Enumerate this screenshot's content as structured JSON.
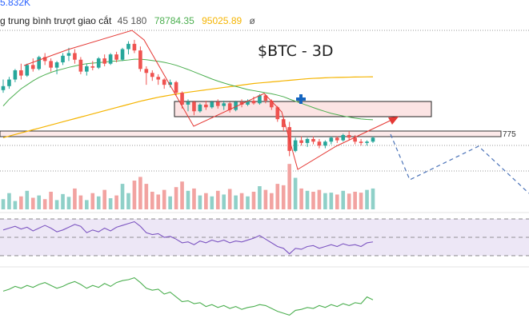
{
  "chart_data": {
    "type": "candlestick",
    "title": "$BTC -  3D",
    "top_left_value": "5.832K",
    "legend": {
      "label": "g trung bình trượt giao cắt",
      "period": "45 180",
      "ma_fast_value": "78784.35",
      "ma_slow_value": "95025.89",
      "null_symbol": "ø"
    },
    "price_label": "775",
    "colors": {
      "up": "#26a69a",
      "down": "#ef5350",
      "ma_fast": "#4caf50",
      "ma_slow": "#f5b400",
      "rsi": "#7e57c2",
      "rsi_band": "#ede7f6",
      "macd": "#4caf50",
      "trend": "#e53935",
      "projection": "#4a72b8",
      "cross_marker": "#1565c0"
    },
    "ylim": [
      60000,
      112000
    ],
    "volume_max": 100,
    "rsi_levels": [
      70,
      50,
      30
    ],
    "rsi_ylim": [
      20,
      80
    ],
    "candles": [
      {
        "o": 90000,
        "h": 94000,
        "l": 89000,
        "c": 91500
      },
      {
        "o": 91500,
        "h": 95000,
        "l": 90500,
        "c": 94000
      },
      {
        "o": 94000,
        "h": 98000,
        "l": 93000,
        "c": 97500
      },
      {
        "o": 97500,
        "h": 100000,
        "l": 94000,
        "c": 95500
      },
      {
        "o": 95500,
        "h": 100000,
        "l": 95000,
        "c": 99500
      },
      {
        "o": 99500,
        "h": 102000,
        "l": 97000,
        "c": 98000
      },
      {
        "o": 98000,
        "h": 103000,
        "l": 97500,
        "c": 102500
      },
      {
        "o": 102500,
        "h": 104000,
        "l": 99500,
        "c": 101000
      },
      {
        "o": 101000,
        "h": 102000,
        "l": 97000,
        "c": 98500
      },
      {
        "o": 98500,
        "h": 101000,
        "l": 96000,
        "c": 100500
      },
      {
        "o": 100500,
        "h": 104000,
        "l": 99500,
        "c": 103000
      },
      {
        "o": 103000,
        "h": 106000,
        "l": 101000,
        "c": 104000
      },
      {
        "o": 104000,
        "h": 105500,
        "l": 100000,
        "c": 101500
      },
      {
        "o": 101500,
        "h": 102500,
        "l": 96000,
        "c": 97000
      },
      {
        "o": 97000,
        "h": 100000,
        "l": 95500,
        "c": 99000
      },
      {
        "o": 99000,
        "h": 101000,
        "l": 97500,
        "c": 98500
      },
      {
        "o": 98500,
        "h": 102500,
        "l": 98000,
        "c": 102000
      },
      {
        "o": 102000,
        "h": 103500,
        "l": 99000,
        "c": 100000
      },
      {
        "o": 100000,
        "h": 104000,
        "l": 99500,
        "c": 103500
      },
      {
        "o": 103500,
        "h": 104500,
        "l": 100500,
        "c": 101500
      },
      {
        "o": 101500,
        "h": 106000,
        "l": 101000,
        "c": 105500
      },
      {
        "o": 105500,
        "h": 108500,
        "l": 103500,
        "c": 107500
      },
      {
        "o": 107500,
        "h": 109000,
        "l": 104000,
        "c": 105000
      },
      {
        "o": 105000,
        "h": 106500,
        "l": 97000,
        "c": 98000
      },
      {
        "o": 98000,
        "h": 99000,
        "l": 92000,
        "c": 96500
      },
      {
        "o": 96500,
        "h": 97500,
        "l": 93500,
        "c": 95000
      },
      {
        "o": 95000,
        "h": 96000,
        "l": 92000,
        "c": 94000
      },
      {
        "o": 94000,
        "h": 94500,
        "l": 90500,
        "c": 92000
      },
      {
        "o": 92000,
        "h": 94000,
        "l": 91000,
        "c": 93000
      },
      {
        "o": 93000,
        "h": 93500,
        "l": 88000,
        "c": 89000
      },
      {
        "o": 89000,
        "h": 89500,
        "l": 83000,
        "c": 84500
      },
      {
        "o": 84500,
        "h": 86500,
        "l": 82000,
        "c": 85500
      },
      {
        "o": 85500,
        "h": 86000,
        "l": 80500,
        "c": 82000
      },
      {
        "o": 82000,
        "h": 85000,
        "l": 81500,
        "c": 84500
      },
      {
        "o": 84500,
        "h": 86000,
        "l": 82500,
        "c": 83500
      },
      {
        "o": 83500,
        "h": 86000,
        "l": 83000,
        "c": 85500
      },
      {
        "o": 85500,
        "h": 86500,
        "l": 83000,
        "c": 84000
      },
      {
        "o": 84000,
        "h": 86000,
        "l": 82500,
        "c": 85000
      },
      {
        "o": 85000,
        "h": 85500,
        "l": 81500,
        "c": 82500
      },
      {
        "o": 82500,
        "h": 86000,
        "l": 82000,
        "c": 85500
      },
      {
        "o": 85500,
        "h": 86500,
        "l": 83500,
        "c": 84500
      },
      {
        "o": 84500,
        "h": 86500,
        "l": 84000,
        "c": 86000
      },
      {
        "o": 86000,
        "h": 87500,
        "l": 84500,
        "c": 85000
      },
      {
        "o": 85000,
        "h": 88500,
        "l": 84500,
        "c": 88000
      },
      {
        "o": 88000,
        "h": 88500,
        "l": 85000,
        "c": 86000
      },
      {
        "o": 86000,
        "h": 86500,
        "l": 82500,
        "c": 83500
      },
      {
        "o": 83500,
        "h": 84000,
        "l": 78000,
        "c": 79000
      },
      {
        "o": 79000,
        "h": 80000,
        "l": 74500,
        "c": 76000
      },
      {
        "o": 76000,
        "h": 78000,
        "l": 65000,
        "c": 67000
      },
      {
        "o": 67000,
        "h": 72000,
        "l": 66500,
        "c": 71000
      },
      {
        "o": 71000,
        "h": 72500,
        "l": 69000,
        "c": 70000
      },
      {
        "o": 70000,
        "h": 72000,
        "l": 68500,
        "c": 71500
      },
      {
        "o": 71500,
        "h": 72500,
        "l": 69500,
        "c": 70500
      },
      {
        "o": 70500,
        "h": 71500,
        "l": 68000,
        "c": 69000
      },
      {
        "o": 69000,
        "h": 71000,
        "l": 68000,
        "c": 70500
      },
      {
        "o": 70500,
        "h": 72500,
        "l": 69500,
        "c": 72000
      },
      {
        "o": 72000,
        "h": 72500,
        "l": 70000,
        "c": 71000
      },
      {
        "o": 71000,
        "h": 73500,
        "l": 70500,
        "c": 73000
      },
      {
        "o": 73000,
        "h": 74500,
        "l": 71000,
        "c": 72000
      },
      {
        "o": 72000,
        "h": 73000,
        "l": 69500,
        "c": 70500
      },
      {
        "o": 70500,
        "h": 71500,
        "l": 69000,
        "c": 70000
      },
      {
        "o": 70000,
        "h": 71000,
        "l": 69000,
        "c": 70500
      },
      {
        "o": 70500,
        "h": 72500,
        "l": 70000,
        "c": 72000
      }
    ],
    "volumes": [
      22,
      35,
      18,
      28,
      40,
      25,
      30,
      22,
      38,
      20,
      33,
      27,
      45,
      30,
      20,
      35,
      28,
      42,
      24,
      30,
      55,
      35,
      62,
      70,
      55,
      38,
      32,
      42,
      28,
      48,
      60,
      40,
      45,
      30,
      35,
      28,
      40,
      32,
      44,
      30,
      35,
      28,
      38,
      50,
      42,
      35,
      55,
      52,
      98,
      68,
      45,
      40,
      38,
      42,
      35,
      36,
      32,
      40,
      34,
      38,
      36,
      42,
      45
    ],
    "rsi": [
      58,
      60,
      62,
      59,
      61,
      57,
      60,
      63,
      60,
      56,
      58,
      61,
      64,
      62,
      55,
      58,
      56,
      60,
      57,
      61,
      63,
      65,
      67,
      62,
      55,
      53,
      54,
      50,
      51,
      48,
      44,
      45,
      42,
      46,
      44,
      47,
      45,
      47,
      44,
      46,
      45,
      47,
      49,
      52,
      48,
      44,
      40,
      38,
      32,
      38,
      37,
      40,
      41,
      38,
      40,
      42,
      40,
      43,
      41,
      42,
      40,
      44,
      45
    ],
    "ma_fast": [
      84000,
      86500,
      88500,
      90500,
      92000,
      93500,
      94800,
      95800,
      96700,
      97400,
      98000,
      98600,
      99100,
      99600,
      100000,
      100200,
      100400,
      100600,
      100900,
      101000,
      101200,
      101400,
      101700,
      101700,
      101500,
      101200,
      100900,
      100500,
      100000,
      99400,
      98600,
      97800,
      96900,
      96000,
      95100,
      94200,
      93400,
      92700,
      92000,
      91400,
      90800,
      90200,
      89800,
      89400,
      89000,
      88600,
      88100,
      87500,
      86600,
      85800,
      85000,
      84200,
      83400,
      82600,
      81900,
      81200,
      80700,
      80200,
      79800,
      79400,
      79100,
      78900,
      78784
    ],
    "ma_slow": [
      72000,
      72600,
      73200,
      73800,
      74400,
      75000,
      75600,
      76200,
      76800,
      77400,
      78000,
      78600,
      79200,
      79800,
      80400,
      81000,
      81600,
      82200,
      82800,
      83400,
      84000,
      84600,
      85200,
      85800,
      86300,
      86800,
      87300,
      87700,
      88100,
      88500,
      88900,
      89200,
      89500,
      89800,
      90100,
      90400,
      90700,
      91000,
      91300,
      91600,
      91900,
      92200,
      92500,
      92700,
      92900,
      93100,
      93300,
      93500,
      93700,
      93900,
      94100,
      94300,
      94450,
      94550,
      94650,
      94750,
      94800,
      94850,
      94900,
      94950,
      94980,
      95010,
      95025
    ],
    "macd": [
      3,
      5,
      8,
      6,
      9,
      7,
      10,
      12,
      9,
      6,
      8,
      11,
      13,
      10,
      6,
      9,
      7,
      11,
      8,
      12,
      14,
      15,
      17,
      12,
      6,
      4,
      5,
      0,
      2,
      -3,
      -8,
      -7,
      -10,
      -9,
      -13,
      -11,
      -14,
      -12,
      -15,
      -13,
      -16,
      -14,
      -13,
      -11,
      -12,
      -15,
      -18,
      -20,
      -22,
      -17,
      -16,
      -14,
      -15,
      -12,
      -14,
      -11,
      -13,
      -10,
      -12,
      -9,
      -10,
      -3,
      -6
    ]
  }
}
